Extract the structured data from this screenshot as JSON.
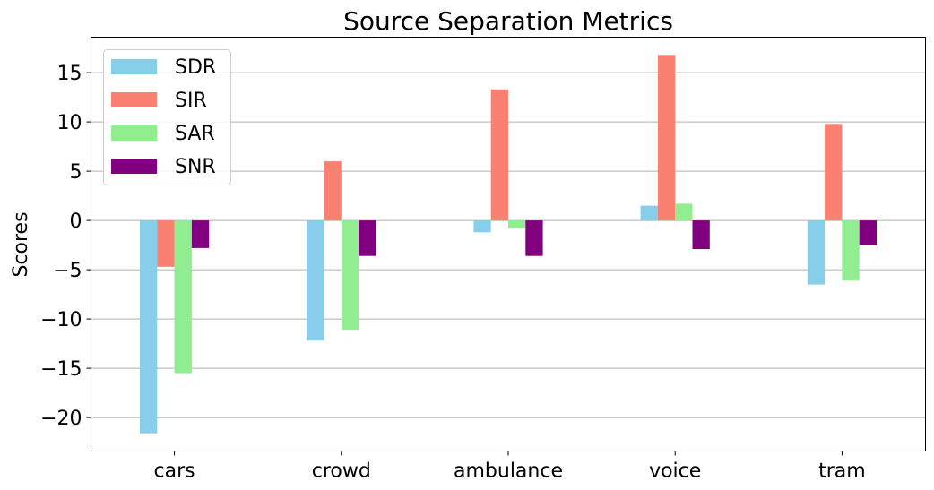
{
  "chart_data": {
    "type": "bar",
    "title": "Source Separation Metrics",
    "xlabel": "",
    "ylabel": "Scores",
    "categories": [
      "cars",
      "crowd",
      "ambulance",
      "voice",
      "tram"
    ],
    "series": [
      {
        "name": "SDR",
        "color": "#87CEEB",
        "values": [
          -21.6,
          -12.2,
          -1.2,
          1.5,
          -6.5
        ]
      },
      {
        "name": "SIR",
        "color": "#FA8072",
        "values": [
          -4.7,
          6.0,
          13.3,
          16.8,
          9.8
        ]
      },
      {
        "name": "SAR",
        "color": "#90EE90",
        "values": [
          -15.5,
          -11.1,
          -0.8,
          1.7,
          -6.1
        ]
      },
      {
        "name": "SNR",
        "color": "#800080",
        "values": [
          -2.8,
          -3.6,
          -3.6,
          -2.9,
          -2.5
        ]
      }
    ],
    "ylim": [
      -23.4,
      18.6
    ],
    "yticks": [
      -20,
      -15,
      -10,
      -5,
      0,
      5,
      10,
      15
    ],
    "ytick_labels": [
      "−20",
      "−15",
      "−10",
      "−5",
      "0",
      "5",
      "10",
      "15"
    ],
    "grid": "y",
    "legend_position": "top-left"
  }
}
